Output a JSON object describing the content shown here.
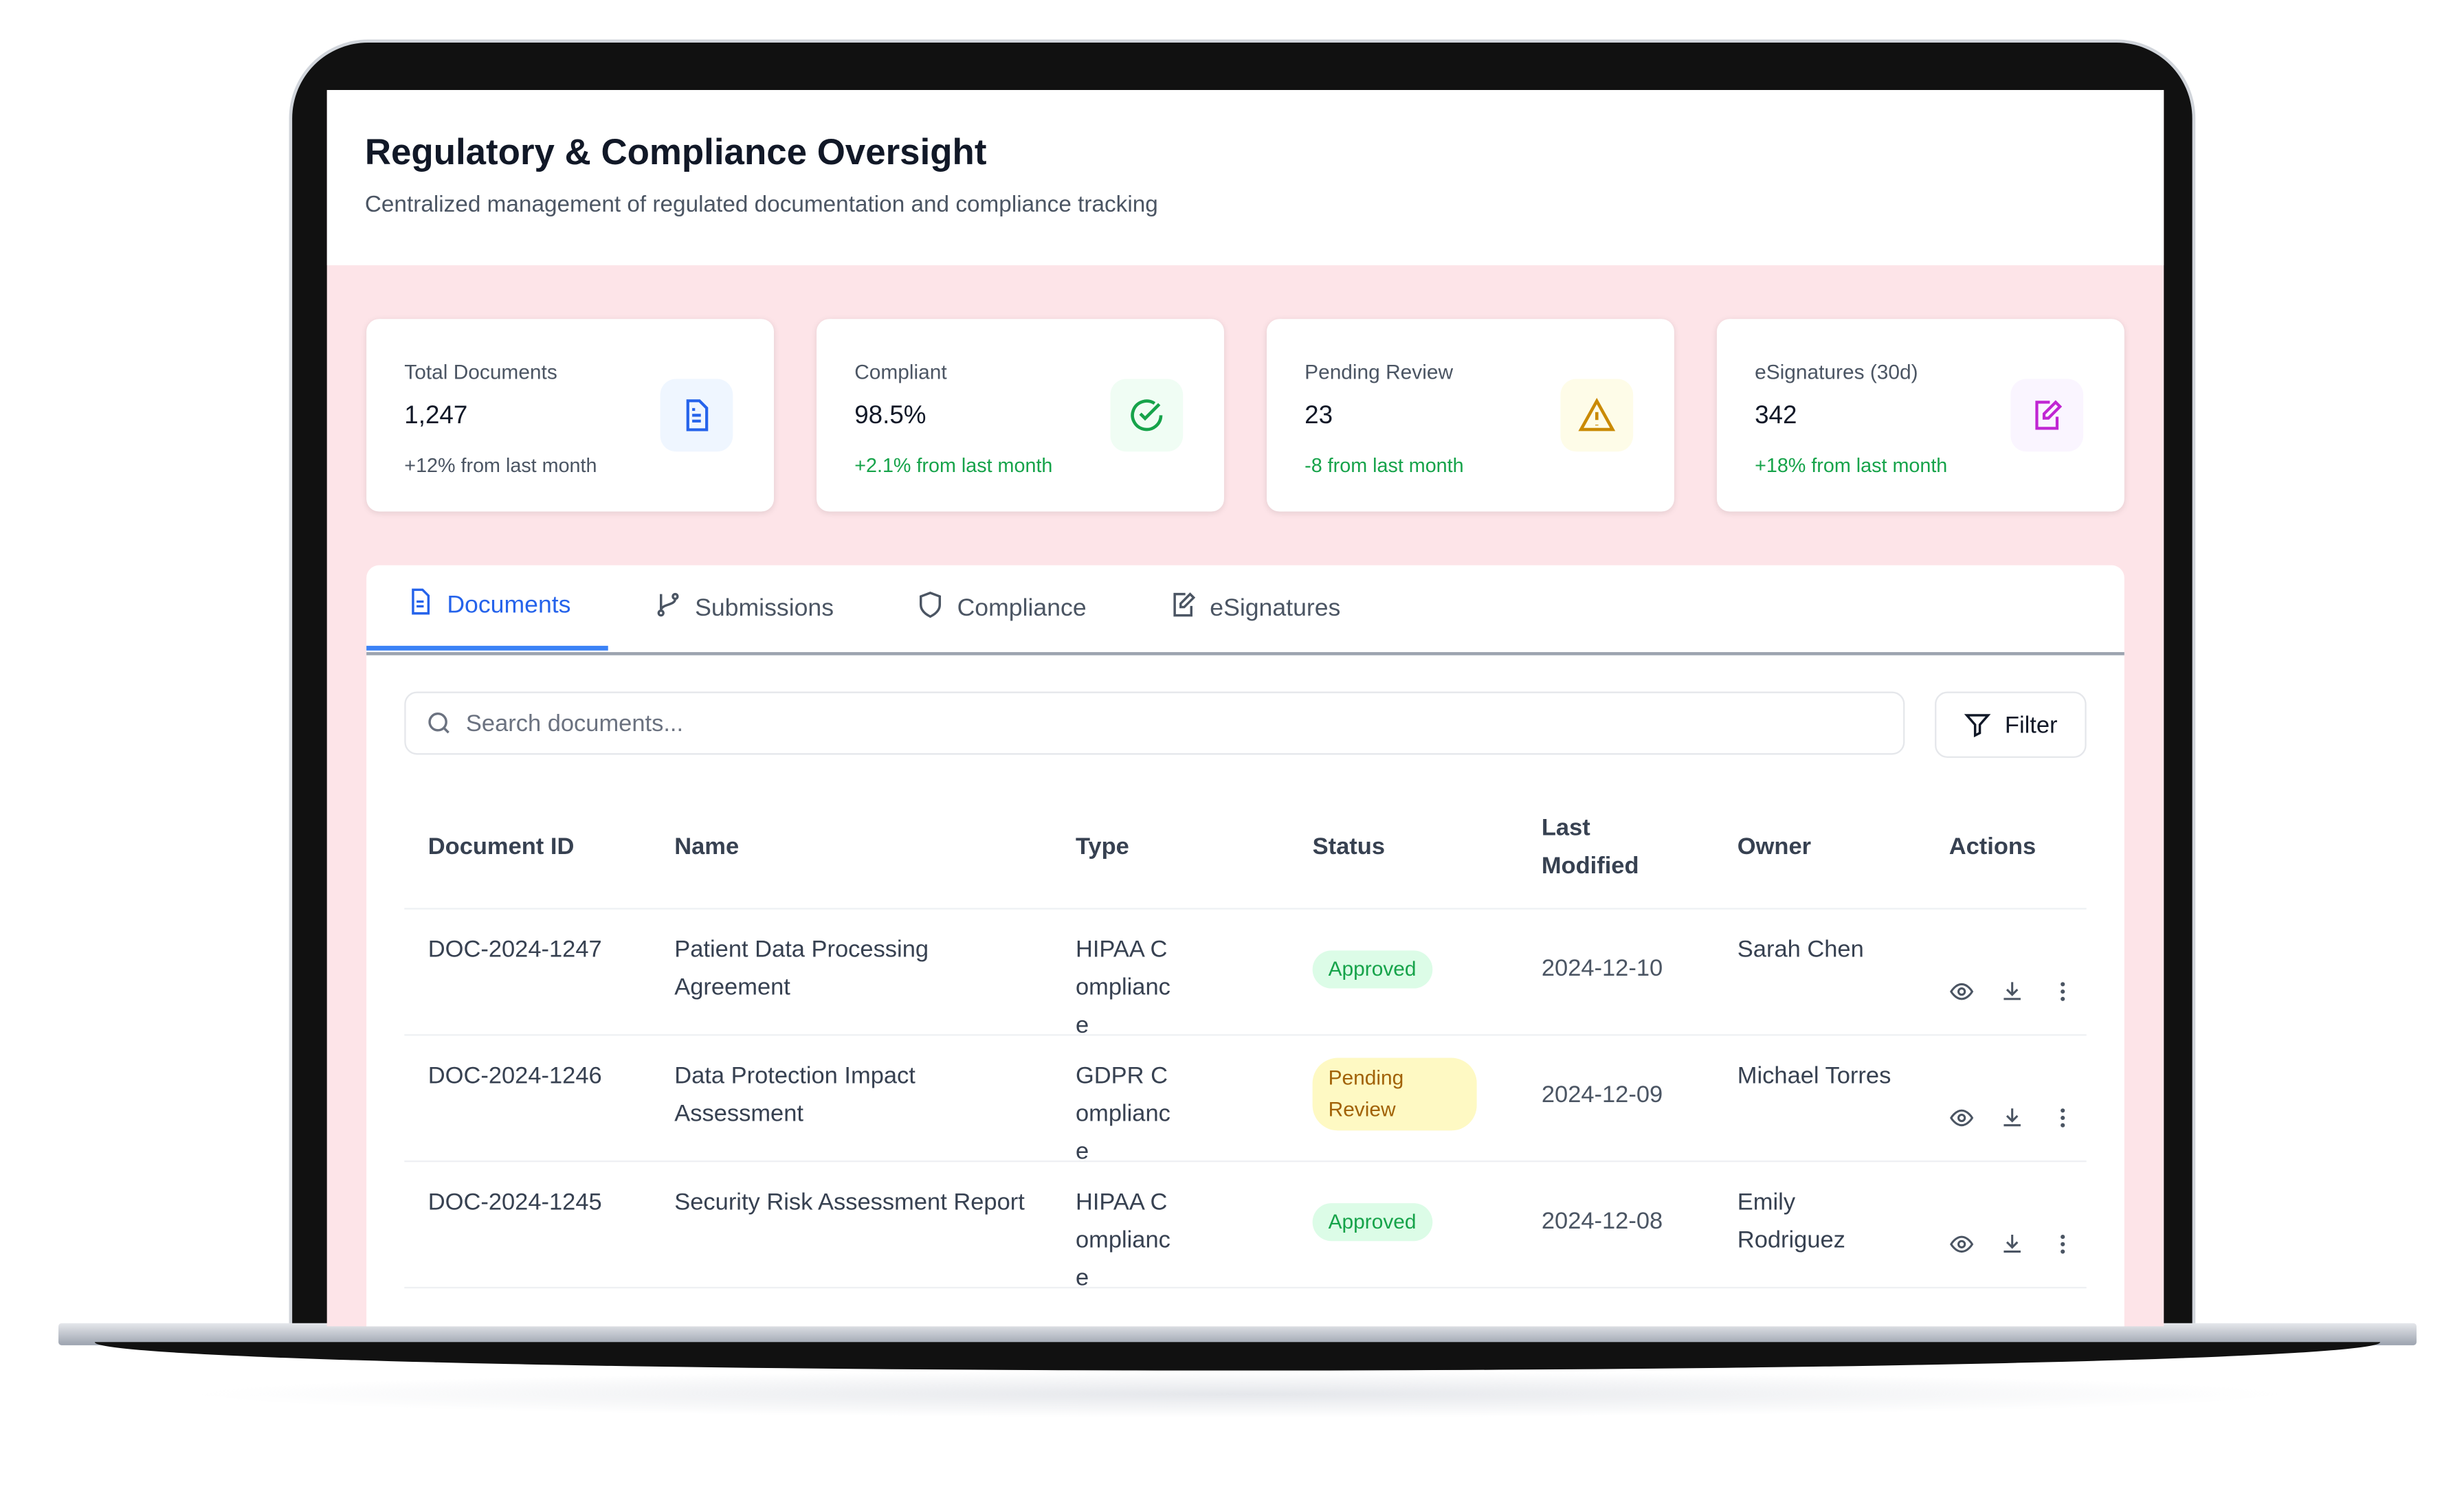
{
  "header": {
    "title": "Regulatory & Compliance Oversight",
    "subtitle": "Centralized management of regulated documentation and compliance tracking"
  },
  "stats": [
    {
      "label": "Total Documents",
      "value": "1,247",
      "change": "+12% from last month"
    },
    {
      "label": "Compliant",
      "value": "98.5%",
      "change": "+2.1% from last month"
    },
    {
      "label": "Pending Review",
      "value": "23",
      "change": "-8 from last month"
    },
    {
      "label": "eSignatures (30d)",
      "value": "342",
      "change": "+18% from last month"
    }
  ],
  "tabs": [
    "Documents",
    "Submissions",
    "Compliance",
    "eSignatures"
  ],
  "search": {
    "placeholder": "Search documents...",
    "filter": "Filter"
  },
  "table": {
    "columns": [
      "Document ID",
      "Name",
      "Type",
      "Status",
      "Last Modified",
      "Owner",
      "Actions"
    ],
    "rows": [
      [
        "DOC-2024-1247",
        "Patient Data Processing Agreement",
        "HIPAA Compliance",
        "Approved",
        "2024-12-10",
        "Sarah Chen"
      ],
      [
        "DOC-2024-1246",
        "Data Protection Impact Assessment",
        "GDPR Compliance",
        "Pending Review",
        "2024-12-09",
        "Michael Torres"
      ],
      [
        "DOC-2024-1245",
        "Security Risk Assessment Report",
        "HIPAA Compliance",
        "Approved",
        "2024-12-08",
        "Emily Rodriguez"
      ]
    ]
  }
}
